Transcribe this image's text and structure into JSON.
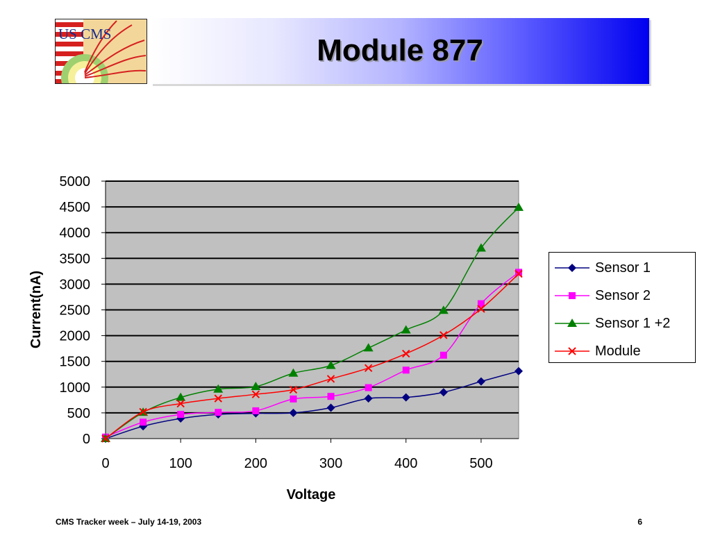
{
  "slide": {
    "title": "Module 877",
    "footer_left": "CMS Tracker week – July 14-19, 2003",
    "page_number": "6",
    "logo_text": "US CMS"
  },
  "chart_data": {
    "type": "line",
    "title": "",
    "xlabel": "Voltage",
    "ylabel": "Current(nA)",
    "xlim": [
      0,
      550
    ],
    "ylim": [
      0,
      5000
    ],
    "xticks": [
      0,
      100,
      200,
      300,
      400,
      500
    ],
    "yticks": [
      0,
      500,
      1000,
      1500,
      2000,
      2500,
      3000,
      3500,
      4000,
      4500,
      5000
    ],
    "grid": "horizontal",
    "plot_background": "#c0c0c0",
    "legend_position": "right",
    "x": [
      0,
      50,
      100,
      150,
      200,
      250,
      300,
      350,
      400,
      450,
      500,
      550
    ],
    "series": [
      {
        "name": "Sensor 1",
        "color": "#000080",
        "marker": "diamond",
        "values": [
          0,
          240,
          390,
          470,
          490,
          500,
          600,
          780,
          800,
          900,
          1110,
          1310
        ]
      },
      {
        "name": "Sensor 2",
        "color": "#ff00ff",
        "marker": "square",
        "values": [
          30,
          320,
          470,
          510,
          540,
          770,
          820,
          990,
          1330,
          1620,
          2620,
          3230
        ]
      },
      {
        "name": "Sensor 1 +2",
        "color": "#008000",
        "marker": "triangle",
        "values": [
          0,
          510,
          800,
          960,
          1010,
          1270,
          1420,
          1760,
          2110,
          2490,
          3700,
          4490
        ]
      },
      {
        "name": "Module",
        "color": "#ff0000",
        "marker": "x",
        "values": [
          0,
          520,
          680,
          780,
          860,
          950,
          1160,
          1370,
          1650,
          2010,
          2520,
          3200
        ]
      }
    ]
  }
}
